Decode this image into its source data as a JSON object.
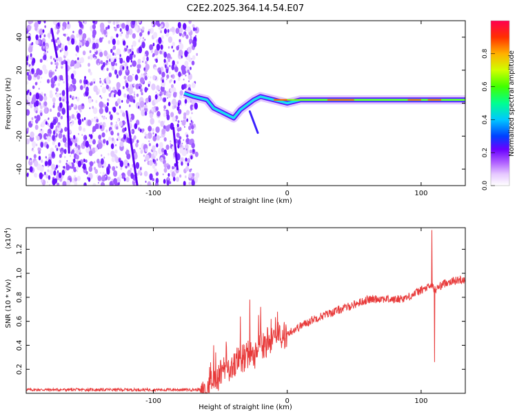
{
  "title": "C2E2.2025.364.14.54.E07",
  "chart_data": [
    {
      "type": "heatmap",
      "xlabel": "Height of straight line (km)",
      "ylabel": "Frequency (Hz)",
      "xlim": [
        -195,
        133
      ],
      "ylim": [
        -50,
        50
      ],
      "xticks": [
        -100,
        0,
        100
      ],
      "yticks": [
        -40,
        -20,
        0,
        20,
        40
      ],
      "colorbar": {
        "label": "Normalized spectral amplitude",
        "range": [
          0,
          1
        ],
        "ticks": [
          0.0,
          0.2,
          0.4,
          0.6,
          0.8
        ]
      },
      "noise_region_x": [
        -195,
        -67
      ],
      "trace": {
        "description": "narrow-band signal near 0 Hz",
        "x": [
          -77,
          -70,
          -60,
          -55,
          -50,
          -45,
          -40,
          -35,
          -30,
          -25,
          -20,
          -15,
          -10,
          -5,
          0,
          10,
          30,
          50,
          70,
          90,
          100,
          110,
          133
        ],
        "freq": [
          6,
          4,
          2,
          -3,
          -5,
          -7,
          -9,
          -4,
          -1,
          2,
          4,
          3,
          2,
          1,
          0,
          2,
          2,
          2,
          2,
          2,
          2,
          2,
          2
        ]
      }
    },
    {
      "type": "line",
      "xlabel": "Height of straight line (km)",
      "ylabel": "SNR (10 * v/v)",
      "y_scale_label": "(x10",
      "y_scale_exponent": "4",
      "xlim": [
        -195,
        133
      ],
      "ylim": [
        0,
        1.38
      ],
      "xticks": [
        -100,
        0,
        100
      ],
      "yticks": [
        0.2,
        0.4,
        0.6,
        0.8,
        1.0,
        1.2
      ],
      "color": "#e83a3a",
      "series": [
        {
          "name": "SNR",
          "x": [
            -195,
            -150,
            -100,
            -75,
            -65,
            -60,
            -55,
            -50,
            -45,
            -40,
            -35,
            -30,
            -25,
            -20,
            -10,
            0,
            10,
            20,
            30,
            40,
            50,
            60,
            70,
            80,
            90,
            100,
            105,
            108,
            110,
            115,
            120,
            133
          ],
          "y": [
            0.03,
            0.03,
            0.03,
            0.03,
            0.03,
            0.06,
            0.1,
            0.14,
            0.18,
            0.22,
            0.26,
            0.3,
            0.36,
            0.4,
            0.44,
            0.5,
            0.56,
            0.62,
            0.66,
            0.7,
            0.74,
            0.78,
            0.79,
            0.78,
            0.8,
            0.86,
            0.88,
            0.9,
            0.86,
            0.9,
            0.93,
            0.95
          ]
        }
      ],
      "spikes": [
        {
          "x": -55,
          "y": 0.4
        },
        {
          "x": -35,
          "y": 0.64
        },
        {
          "x": -28,
          "y": 0.78
        },
        {
          "x": -20,
          "y": 0.72
        },
        {
          "x": -12,
          "y": 0.62
        },
        {
          "x": 108,
          "y": 1.36
        },
        {
          "x": 110,
          "y": 0.26
        }
      ]
    }
  ]
}
